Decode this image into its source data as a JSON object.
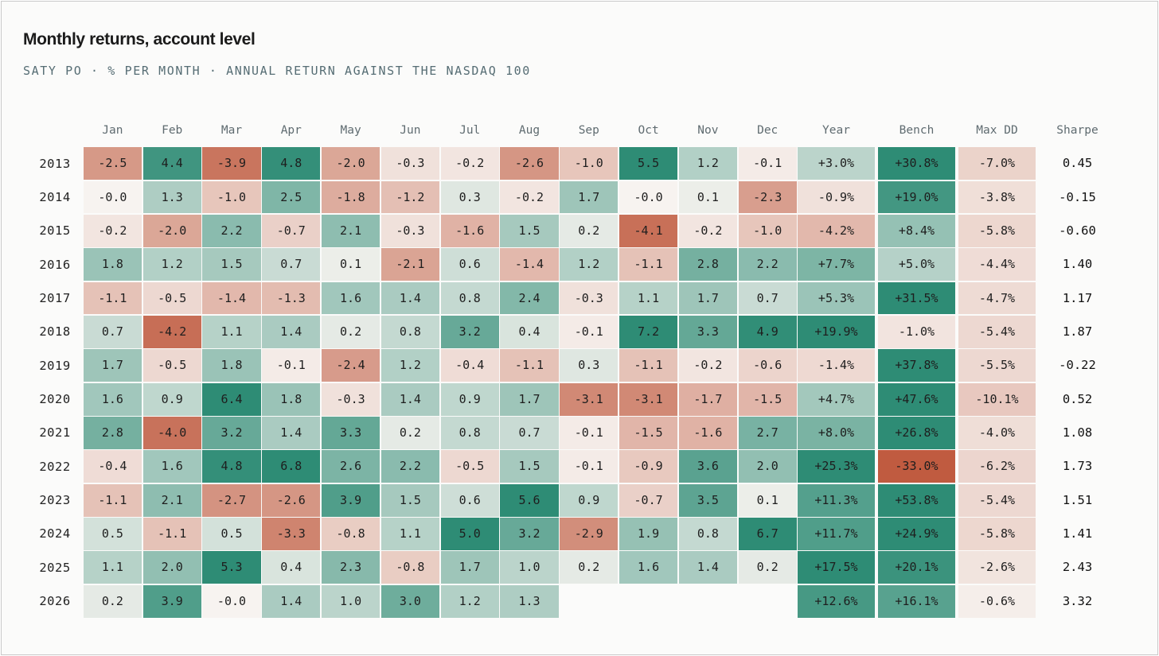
{
  "title": "Monthly returns, account level",
  "subtitle": "SATY PO · % PER MONTH · ANNUAL RETURN AGAINST THE NASDAQ 100",
  "colors": {
    "positive_dark": "#2e8c75",
    "negative_dark": "#c05b40",
    "neutral": "#f7f4f1",
    "max_dd_tint": "#f0dad3"
  },
  "chart_data": {
    "type": "heatmap",
    "columns": [
      "Jan",
      "Feb",
      "Mar",
      "Apr",
      "May",
      "Jun",
      "Jul",
      "Aug",
      "Sep",
      "Oct",
      "Nov",
      "Dec",
      "Year",
      "Bench",
      "Max DD",
      "Sharpe"
    ],
    "rows": [
      {
        "year": "2013",
        "months": [
          "-2.5",
          "4.4",
          "-3.9",
          "4.8",
          "-2.0",
          "-0.3",
          "-0.2",
          "-2.6",
          "-1.0",
          "5.5",
          "1.2",
          "-0.1"
        ],
        "year_return": "+3.0%",
        "bench": "+30.8%",
        "max_dd": "-7.0%",
        "sharpe": "0.45"
      },
      {
        "year": "2014",
        "months": [
          "-0.0",
          "1.3",
          "-1.0",
          "2.5",
          "-1.8",
          "-1.2",
          "0.3",
          "-0.2",
          "1.7",
          "-0.0",
          "0.1",
          "-2.3"
        ],
        "year_return": "-0.9%",
        "bench": "+19.0%",
        "max_dd": "-3.8%",
        "sharpe": "-0.15"
      },
      {
        "year": "2015",
        "months": [
          "-0.2",
          "-2.0",
          "2.2",
          "-0.7",
          "2.1",
          "-0.3",
          "-1.6",
          "1.5",
          "0.2",
          "-4.1",
          "-0.2",
          "-1.0"
        ],
        "year_return": "-4.2%",
        "bench": "+8.4%",
        "max_dd": "-5.8%",
        "sharpe": "-0.60"
      },
      {
        "year": "2016",
        "months": [
          "1.8",
          "1.2",
          "1.5",
          "0.7",
          "0.1",
          "-2.1",
          "0.6",
          "-1.4",
          "1.2",
          "-1.1",
          "2.8",
          "2.2"
        ],
        "year_return": "+7.7%",
        "bench": "+5.0%",
        "max_dd": "-4.4%",
        "sharpe": "1.40"
      },
      {
        "year": "2017",
        "months": [
          "-1.1",
          "-0.5",
          "-1.4",
          "-1.3",
          "1.6",
          "1.4",
          "0.8",
          "2.4",
          "-0.3",
          "1.1",
          "1.7",
          "0.7"
        ],
        "year_return": "+5.3%",
        "bench": "+31.5%",
        "max_dd": "-4.7%",
        "sharpe": "1.17"
      },
      {
        "year": "2018",
        "months": [
          "0.7",
          "-4.2",
          "1.1",
          "1.4",
          "0.2",
          "0.8",
          "3.2",
          "0.4",
          "-0.1",
          "7.2",
          "3.3",
          "4.9"
        ],
        "year_return": "+19.9%",
        "bench": "-1.0%",
        "max_dd": "-5.4%",
        "sharpe": "1.87"
      },
      {
        "year": "2019",
        "months": [
          "1.7",
          "-0.5",
          "1.8",
          "-0.1",
          "-2.4",
          "1.2",
          "-0.4",
          "-1.1",
          "0.3",
          "-1.1",
          "-0.2",
          "-0.6"
        ],
        "year_return": "-1.4%",
        "bench": "+37.8%",
        "max_dd": "-5.5%",
        "sharpe": "-0.22"
      },
      {
        "year": "2020",
        "months": [
          "1.6",
          "0.9",
          "6.4",
          "1.8",
          "-0.3",
          "1.4",
          "0.9",
          "1.7",
          "-3.1",
          "-3.1",
          "-1.7",
          "-1.5"
        ],
        "year_return": "+4.7%",
        "bench": "+47.6%",
        "max_dd": "-10.1%",
        "sharpe": "0.52"
      },
      {
        "year": "2021",
        "months": [
          "2.8",
          "-4.0",
          "3.2",
          "1.4",
          "3.3",
          "0.2",
          "0.8",
          "0.7",
          "-0.1",
          "-1.5",
          "-1.6",
          "2.7"
        ],
        "year_return": "+8.0%",
        "bench": "+26.8%",
        "max_dd": "-4.0%",
        "sharpe": "1.08"
      },
      {
        "year": "2022",
        "months": [
          "-0.4",
          "1.6",
          "4.8",
          "6.8",
          "2.6",
          "2.2",
          "-0.5",
          "1.5",
          "-0.1",
          "-0.9",
          "3.6",
          "2.0"
        ],
        "year_return": "+25.3%",
        "bench": "-33.0%",
        "max_dd": "-6.2%",
        "sharpe": "1.73"
      },
      {
        "year": "2023",
        "months": [
          "-1.1",
          "2.1",
          "-2.7",
          "-2.6",
          "3.9",
          "1.5",
          "0.6",
          "5.6",
          "0.9",
          "-0.7",
          "3.5",
          "0.1"
        ],
        "year_return": "+11.3%",
        "bench": "+53.8%",
        "max_dd": "-5.4%",
        "sharpe": "1.51"
      },
      {
        "year": "2024",
        "months": [
          "0.5",
          "-1.1",
          "0.5",
          "-3.3",
          "-0.8",
          "1.1",
          "5.0",
          "3.2",
          "-2.9",
          "1.9",
          "0.8",
          "6.7"
        ],
        "year_return": "+11.7%",
        "bench": "+24.9%",
        "max_dd": "-5.8%",
        "sharpe": "1.41"
      },
      {
        "year": "2025",
        "months": [
          "1.1",
          "2.0",
          "5.3",
          "0.4",
          "2.3",
          "-0.8",
          "1.7",
          "1.0",
          "0.2",
          "1.6",
          "1.4",
          "0.2"
        ],
        "year_return": "+17.5%",
        "bench": "+20.1%",
        "max_dd": "-2.6%",
        "sharpe": "2.43"
      },
      {
        "year": "2026",
        "months": [
          "0.2",
          "3.9",
          "-0.0",
          "1.4",
          "1.0",
          "3.0",
          "1.2",
          "1.3",
          null,
          null,
          null,
          null
        ],
        "year_return": "+12.6%",
        "bench": "+16.1%",
        "max_dd": "-0.6%",
        "sharpe": "3.32"
      }
    ]
  }
}
